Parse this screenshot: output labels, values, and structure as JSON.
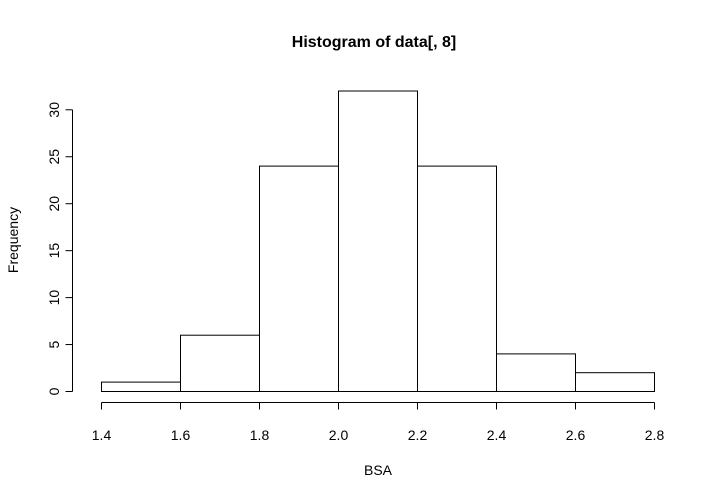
{
  "chart_data": {
    "type": "bar",
    "title": "Histogram of data[, 8]",
    "xlabel": "BSA",
    "ylabel": "Frequency",
    "bin_edges": [
      1.4,
      1.6,
      1.8,
      2.0,
      2.2,
      2.4,
      2.6,
      2.8
    ],
    "values": [
      1,
      6,
      24,
      32,
      24,
      4,
      2
    ],
    "xlim": [
      1.4,
      2.8
    ],
    "ylim": [
      0,
      32
    ],
    "x_ticks": [
      "1.4",
      "1.6",
      "1.8",
      "2.0",
      "2.2",
      "2.4",
      "2.6",
      "2.8"
    ],
    "y_ticks": [
      "0",
      "5",
      "10",
      "15",
      "20",
      "25",
      "30"
    ],
    "grid": false,
    "colors": {
      "bar_fill": "#ffffff",
      "bar_stroke": "#000000",
      "background": "#ffffff"
    }
  }
}
